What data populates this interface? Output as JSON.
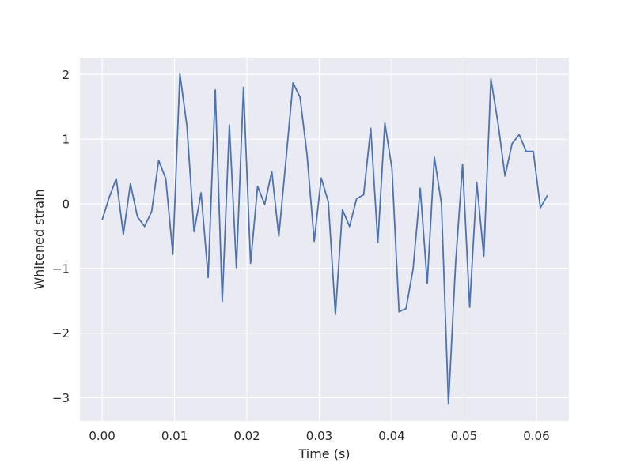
{
  "chart_data": {
    "type": "line",
    "xlabel": "Time (s)",
    "ylabel": "Whitened strain",
    "xlim": [
      -0.00307,
      0.06449
    ],
    "ylim": [
      -3.36,
      2.26
    ],
    "grid": true,
    "xticks": [
      0.0,
      0.01,
      0.02,
      0.03,
      0.04,
      0.05,
      0.06
    ],
    "xtick_labels": [
      "0.00",
      "0.01",
      "0.02",
      "0.03",
      "0.04",
      "0.05",
      "0.06"
    ],
    "yticks": [
      -3,
      -2,
      -1,
      0,
      1,
      2
    ],
    "ytick_labels": [
      "−3",
      "−2",
      "−1",
      "0",
      "1",
      "2"
    ],
    "colors": {
      "line": "#4c72b0",
      "plot_background": "#eaeaf2",
      "grid": "#ffffff",
      "figure_background": "#ffffff"
    },
    "series": [
      {
        "x": [
          0.0,
          0.00098,
          0.00195,
          0.00293,
          0.00391,
          0.00488,
          0.00586,
          0.00684,
          0.00781,
          0.00879,
          0.00977,
          0.01074,
          0.01172,
          0.0127,
          0.01367,
          0.01465,
          0.01563,
          0.0166,
          0.01758,
          0.01855,
          0.01953,
          0.02051,
          0.02148,
          0.02246,
          0.02344,
          0.02441,
          0.02539,
          0.02637,
          0.02734,
          0.02832,
          0.0293,
          0.03027,
          0.03125,
          0.03223,
          0.0332,
          0.03418,
          0.03516,
          0.03613,
          0.03711,
          0.03809,
          0.03906,
          0.04004,
          0.04102,
          0.04199,
          0.04297,
          0.04395,
          0.04492,
          0.0459,
          0.04688,
          0.04785,
          0.04883,
          0.0498,
          0.05078,
          0.05176,
          0.05273,
          0.05371,
          0.05469,
          0.05566,
          0.05664,
          0.05762,
          0.05859,
          0.05957,
          0.06055,
          0.06152
        ],
        "y": [
          -0.25,
          0.1,
          0.39,
          -0.47,
          0.31,
          -0.2,
          -0.35,
          -0.12,
          0.67,
          0.39,
          -0.78,
          2.01,
          1.2,
          -0.43,
          0.17,
          -1.14,
          1.76,
          -1.51,
          1.22,
          -0.99,
          1.8,
          -0.92,
          0.27,
          -0.01,
          0.5,
          -0.5,
          0.67,
          1.87,
          1.65,
          0.75,
          -0.58,
          0.4,
          0.03,
          -1.71,
          -0.09,
          -0.35,
          0.08,
          0.14,
          1.17,
          -0.6,
          1.25,
          0.55,
          -1.67,
          -1.62,
          -1.0,
          0.24,
          -1.23,
          0.72,
          0.0,
          -3.1,
          -0.93,
          0.61,
          -1.6,
          0.33,
          -0.81,
          1.93,
          1.25,
          0.43,
          0.93,
          1.07,
          0.81,
          0.81,
          -0.06,
          0.13
        ]
      }
    ]
  }
}
